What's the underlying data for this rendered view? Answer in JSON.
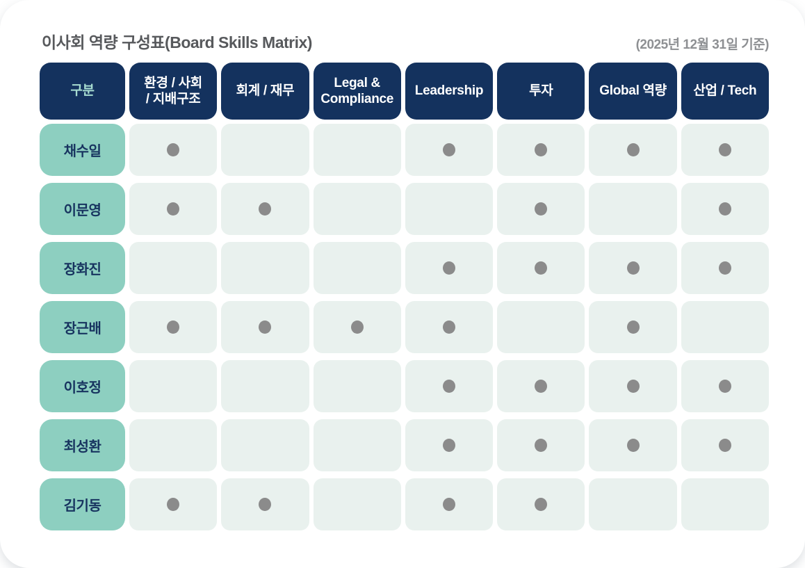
{
  "header": {
    "title": "이사회 역량 구성표(Board Skills Matrix)",
    "date_note": "(2025년 12월 31일 기준)"
  },
  "chart_data": {
    "type": "table",
    "title": "이사회 역량 구성표(Board Skills Matrix)",
    "subtitle": "(2025년 12월 31일 기준)",
    "corner_label": "구분",
    "columns": [
      "환경 / 사회\n/ 지배구조",
      "회계 / 재무",
      "Legal &\nCompliance",
      "Leadership",
      "투자",
      "Global 역량",
      "산업 / Tech"
    ],
    "rows": [
      {
        "name": "채수일",
        "skills": [
          1,
          0,
          0,
          1,
          1,
          1,
          1
        ]
      },
      {
        "name": "이문영",
        "skills": [
          1,
          1,
          0,
          0,
          1,
          0,
          1
        ]
      },
      {
        "name": "장화진",
        "skills": [
          0,
          0,
          0,
          1,
          1,
          1,
          1
        ]
      },
      {
        "name": "장근배",
        "skills": [
          1,
          1,
          1,
          1,
          0,
          1,
          0
        ]
      },
      {
        "name": "이호정",
        "skills": [
          0,
          0,
          0,
          1,
          1,
          1,
          1
        ]
      },
      {
        "name": "최성환",
        "skills": [
          0,
          0,
          0,
          1,
          1,
          1,
          1
        ]
      },
      {
        "name": "김기동",
        "skills": [
          1,
          1,
          0,
          1,
          1,
          0,
          0
        ]
      }
    ],
    "marker": "filled-dot"
  },
  "colors": {
    "header_bg": "#14325e",
    "header_text": "#ffffff",
    "corner_text": "#a7dcd0",
    "name_bg": "#8dcfc0",
    "name_text": "#17335f",
    "cell_bg": "#e9f1ee",
    "dot": "#8b8b8b",
    "title_text": "#57595c",
    "date_text": "#8e9093"
  }
}
